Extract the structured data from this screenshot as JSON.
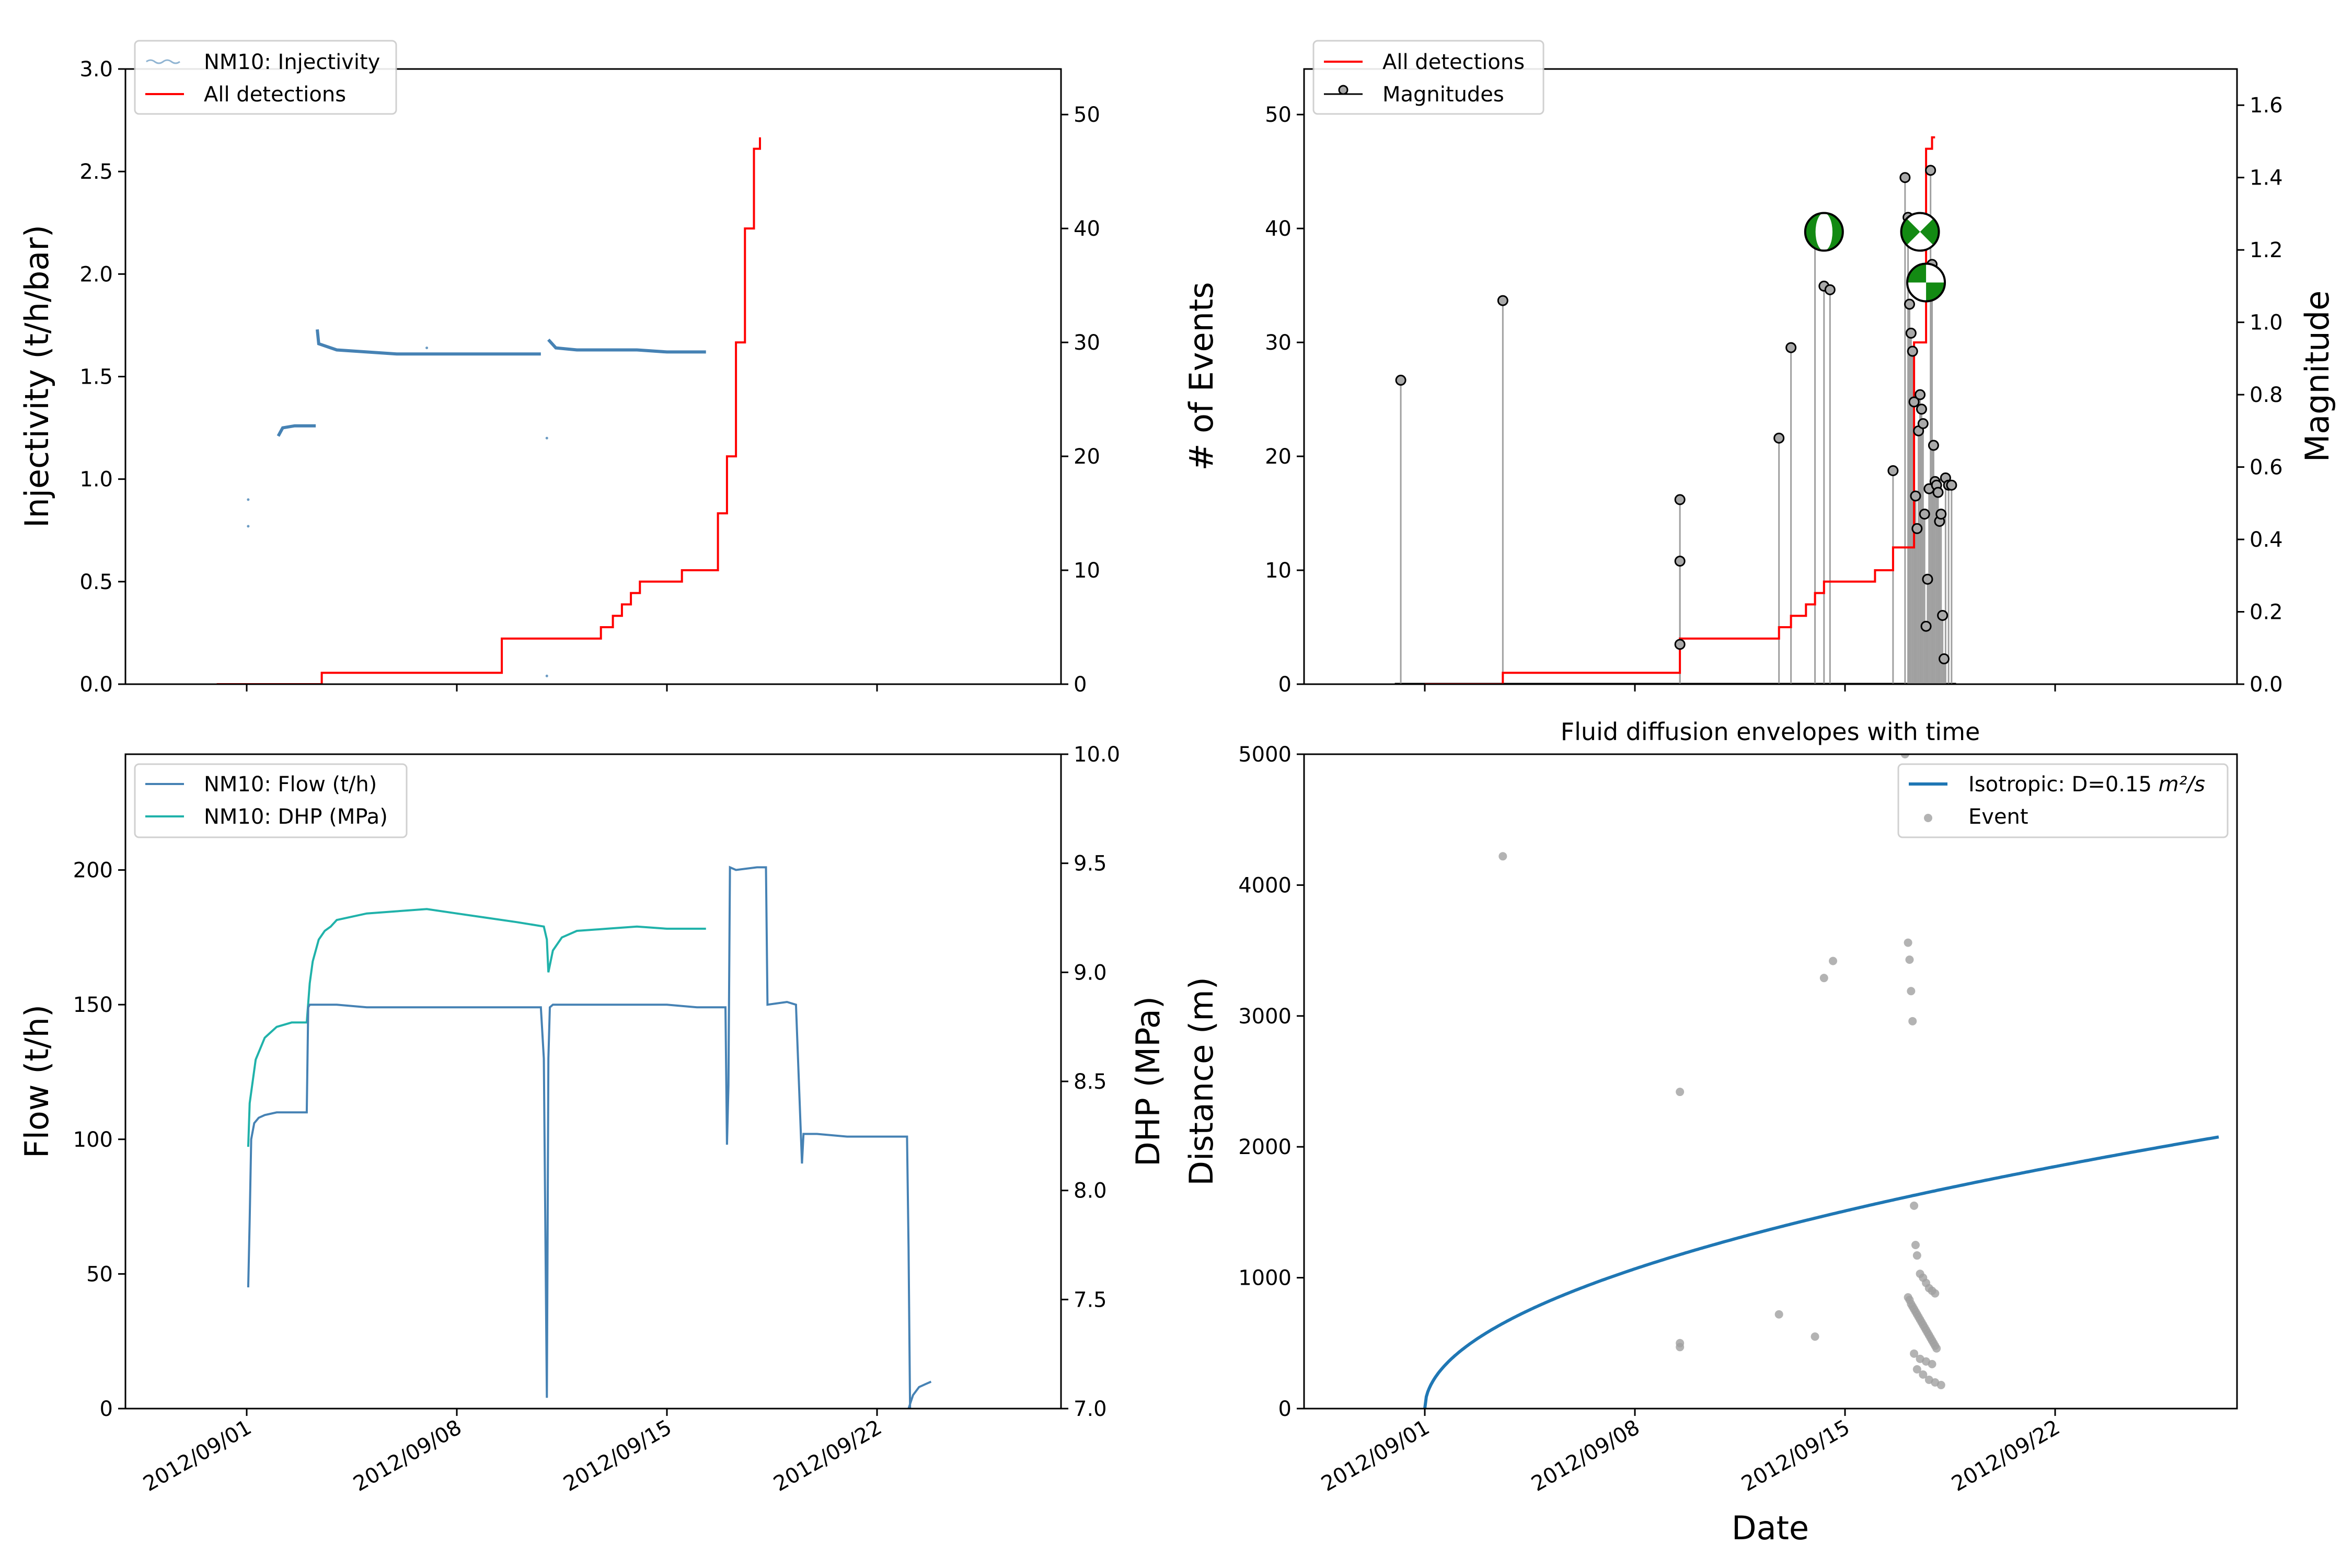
{
  "colors": {
    "injectivity": "#4682b4",
    "flow": "#4682b4",
    "dhp": "#20b2aa",
    "detections": "#ff0000",
    "stem": "#a0a0a0",
    "marker_face": "#a9a9a9",
    "envelope": "#1f77b4",
    "event": "#a0a0a0",
    "beachball_green": "#138a13"
  },
  "x_tick_labels": [
    "2012/09/01",
    "2012/09/08",
    "2012/09/15",
    "2012/09/22"
  ],
  "chart_data": [
    {
      "id": "injectivity",
      "type": "line",
      "ylabel": "Injectivity (t/h/bar)",
      "ylim": [
        0,
        3.0
      ],
      "y2lim": [
        0,
        54
      ],
      "y_ticks": [
        "0.0",
        "0.5",
        "1.0",
        "1.5",
        "2.0",
        "2.5",
        "3.0"
      ],
      "y2_ticks": [
        "0",
        "10",
        "20",
        "30",
        "40",
        "50"
      ],
      "legend": [
        {
          "label": "NM10: Injectivity",
          "style": "line-noisy"
        },
        {
          "label": "All detections",
          "style": "line"
        }
      ],
      "series": [
        {
          "name": "NM10: Injectivity",
          "axis": "left",
          "x": [
            1.05,
            1.2,
            1.6,
            2.0,
            2.3,
            2.35,
            2.4,
            3.0,
            4.0,
            5.0,
            6.0,
            7.0,
            8.0,
            9.0,
            9.8,
            10.0,
            10.05,
            10.3,
            11.0,
            12.0,
            13.0,
            14.0,
            15.0,
            15.3
          ],
          "y": [
            1.21,
            1.25,
            1.26,
            1.26,
            1.26,
            1.73,
            1.66,
            1.63,
            1.62,
            1.61,
            1.61,
            1.61,
            1.61,
            1.61,
            1.61,
            1.61,
            1.68,
            1.64,
            1.63,
            1.63,
            1.63,
            1.62,
            1.62,
            1.62
          ]
        },
        {
          "name": "All detections",
          "axis": "right",
          "x": [
            -1.0,
            2.5,
            8.5,
            11.8,
            12.2,
            12.5,
            12.8,
            13.1,
            13.4,
            14.5,
            15.7,
            16.0,
            16.3,
            16.6,
            16.9,
            17.1
          ],
          "y": [
            0,
            1,
            4,
            5,
            6,
            7,
            8,
            9,
            9,
            10,
            15,
            20,
            30,
            40,
            47,
            48
          ]
        }
      ]
    },
    {
      "id": "events",
      "type": "line",
      "ylabel": "# of Events",
      "y2label": "Magnitude",
      "ylim": [
        0,
        54
      ],
      "y2lim": [
        0,
        1.7
      ],
      "y_ticks": [
        "0",
        "10",
        "20",
        "30",
        "40",
        "50"
      ],
      "y2_ticks": [
        "0.0",
        "0.2",
        "0.4",
        "0.6",
        "0.8",
        "1.0",
        "1.2",
        "1.4",
        "1.6"
      ],
      "legend": [
        {
          "label": "All detections",
          "style": "line"
        },
        {
          "label": "Magnitudes",
          "style": "stem"
        }
      ],
      "series": [
        {
          "name": "All detections",
          "axis": "left",
          "x": [
            0,
            2.6,
            8.5,
            11.8,
            12.2,
            12.7,
            13.0,
            13.3,
            15.0,
            15.6,
            16.3,
            16.7,
            16.9,
            17.0
          ],
          "y": [
            0,
            1,
            4,
            5,
            6,
            7,
            8,
            9,
            10,
            12,
            30,
            47,
            48,
            48
          ]
        },
        {
          "name": "Magnitudes",
          "axis": "right",
          "type": "stem",
          "x": [
            -0.8,
            2.6,
            8.5,
            8.5,
            8.5,
            11.8,
            12.2,
            13.0,
            13.3,
            13.5,
            15.6,
            16.0,
            16.1,
            16.15,
            16.2,
            16.25,
            16.3,
            16.35,
            16.4,
            16.45,
            16.5,
            16.55,
            16.6,
            16.65,
            16.7,
            16.75,
            16.8,
            16.85,
            16.9,
            16.95,
            17.0,
            17.05,
            17.1,
            17.15,
            17.2,
            17.25,
            17.3,
            17.35,
            17.45,
            17.55
          ],
          "y": [
            0.84,
            1.06,
            0.51,
            0.34,
            0.11,
            0.68,
            0.93,
            1.25,
            1.1,
            1.09,
            0.59,
            1.4,
            1.29,
            1.05,
            0.97,
            0.92,
            0.78,
            0.52,
            0.43,
            0.7,
            0.8,
            0.76,
            0.72,
            0.47,
            0.16,
            0.29,
            0.54,
            1.42,
            1.16,
            0.66,
            0.56,
            0.55,
            0.53,
            0.45,
            0.47,
            0.19,
            0.07,
            0.57,
            0.55,
            0.55
          ]
        }
      ],
      "beachballs": [
        {
          "x": 13.3,
          "y": 1.25,
          "pattern": "vertical-band"
        },
        {
          "x": 16.5,
          "y": 1.25,
          "pattern": "diagonal"
        },
        {
          "x": 16.7,
          "y": 1.11,
          "pattern": "quadrant"
        }
      ]
    },
    {
      "id": "flow",
      "type": "line",
      "ylabel": "Flow (t/h)",
      "y2label": "DHP (MPa)",
      "ylim": [
        0,
        243
      ],
      "y2lim": [
        7.0,
        10.0
      ],
      "y_ticks": [
        "0",
        "50",
        "100",
        "150",
        "200"
      ],
      "y2_ticks": [
        "7.0",
        "7.5",
        "8.0",
        "8.5",
        "9.0",
        "9.5",
        "10.0"
      ],
      "legend": [
        {
          "label": "NM10: Flow (t/h)",
          "style": "line",
          "color": "flow"
        },
        {
          "label": "NM10: DHP (MPa)",
          "style": "line",
          "color": "dhp"
        }
      ],
      "series": [
        {
          "name": "NM10: Flow (t/h)",
          "axis": "left",
          "x": [
            0.05,
            0.1,
            0.15,
            0.2,
            0.25,
            0.4,
            0.6,
            1.0,
            1.5,
            2.0,
            2.05,
            2.1,
            3.0,
            4.0,
            5.0,
            6.0,
            7.0,
            8.0,
            9.0,
            9.8,
            9.9,
            10.0,
            10.05,
            10.1,
            10.2,
            11.0,
            12.0,
            13.0,
            14.0,
            15.0,
            15.95,
            16.0,
            16.05,
            16.1,
            16.3,
            17.0,
            17.3,
            17.35,
            18.0,
            18.3,
            18.5,
            18.55,
            18.7,
            19.0,
            20.0,
            21.0,
            21.5,
            22.0,
            22.05,
            22.1
          ],
          "y": [
            45,
            70,
            100,
            103,
            106,
            108,
            109,
            110,
            110,
            110,
            149,
            150,
            150,
            149,
            149,
            149,
            149,
            149,
            149,
            149,
            130,
            4,
            130,
            149,
            150,
            150,
            150,
            150,
            150,
            149,
            149,
            98,
            120,
            201,
            200,
            201,
            201,
            150,
            151,
            150,
            91,
            102,
            102,
            102,
            101,
            101,
            101,
            101,
            60,
            0
          ]
        },
        {
          "name": "NM10: DHP (MPa)",
          "axis": "right",
          "x": [
            0.05,
            0.1,
            0.3,
            0.6,
            1.0,
            1.5,
            2.0,
            2.1,
            2.2,
            2.4,
            2.6,
            2.8,
            3.0,
            4.0,
            5.0,
            6.0,
            7.0,
            8.0,
            9.0,
            9.9,
            10.0,
            10.05,
            10.2,
            10.5,
            11.0,
            12.0,
            13.0,
            14.0,
            15.3
          ],
          "y": [
            8.2,
            8.4,
            8.6,
            8.7,
            8.75,
            8.77,
            8.77,
            8.95,
            9.05,
            9.15,
            9.19,
            9.21,
            9.24,
            9.27,
            9.28,
            9.29,
            9.27,
            9.25,
            9.23,
            9.21,
            9.15,
            9.0,
            9.1,
            9.16,
            9.19,
            9.2,
            9.21,
            9.2,
            9.2
          ]
        },
        {
          "name": "recovery",
          "axis": "left",
          "x": [
            22.05,
            22.2,
            22.4,
            22.6,
            22.8
          ],
          "y": [
            0,
            5,
            8,
            9,
            10
          ]
        }
      ]
    },
    {
      "id": "diffusion",
      "type": "scatter",
      "title": "Fluid diffusion envelopes with time",
      "xlabel": "Date",
      "ylabel": "Distance (m)",
      "ylim": [
        0,
        5000
      ],
      "y_ticks": [
        "0",
        "1000",
        "2000",
        "3000",
        "4000",
        "5000"
      ],
      "legend": [
        {
          "label": "Isotropic: D=0.15 ",
          "math": "m²/s",
          "style": "line"
        },
        {
          "label": "Event",
          "style": "point"
        }
      ],
      "envelope": {
        "name": "Isotropic: D=0.15 m²/s",
        "D": 0.15,
        "start_day": 0
      },
      "events": {
        "name": "Event",
        "x": [
          2.6,
          8.5,
          8.5,
          8.5,
          11.8,
          13.0,
          13.3,
          13.6,
          16.0,
          16.1,
          16.15,
          16.2,
          16.25,
          16.3,
          16.35,
          16.4,
          16.5,
          16.6,
          16.7,
          16.8,
          16.9,
          17.0,
          16.1,
          16.15,
          16.2,
          16.25,
          16.3,
          16.35,
          16.4,
          16.45,
          16.5,
          16.55,
          16.6,
          16.65,
          16.7,
          16.75,
          16.8,
          16.85,
          16.9,
          16.95,
          17.0,
          17.05,
          16.3,
          16.5,
          16.7,
          16.9,
          16.4,
          16.6,
          16.8,
          17.0,
          17.2
        ],
        "y": [
          4220,
          2420,
          500,
          470,
          720,
          550,
          3290,
          3420,
          5000,
          3560,
          3430,
          3190,
          2960,
          1550,
          1250,
          1170,
          1030,
          1000,
          960,
          920,
          900,
          880,
          850,
          830,
          800,
          780,
          760,
          740,
          720,
          700,
          680,
          660,
          640,
          620,
          600,
          580,
          560,
          540,
          520,
          500,
          480,
          460,
          420,
          380,
          360,
          340,
          300,
          260,
          220,
          200,
          180
        ]
      }
    }
  ]
}
